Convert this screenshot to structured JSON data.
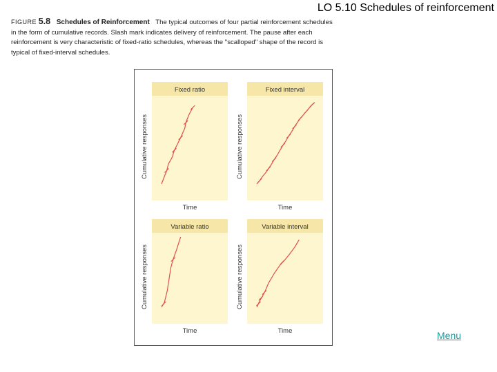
{
  "slide": {
    "title": "LO 5.10  Schedules of reinforcement",
    "menu_label": "Menu"
  },
  "caption": {
    "figure_label": "FIGURE",
    "figure_number": "5.8",
    "figure_title": "Schedules of Reinforcement",
    "text": "The typical outcomes of four partial reinforcement schedules in the form of cumulative records. Slash mark indicates delivery of reinforcement. The pause after each reinforcement is very characteristic of fixed-ratio schedules, whereas the \"scalloped\" shape of the record is typical of fixed-interval schedules."
  },
  "colors": {
    "panel_fill": "#fdf6cf",
    "panel_header": "#f6e7a8",
    "curve": "#e0504a",
    "menu_link": "#1a9a9a"
  },
  "chart_data": [
    {
      "type": "line",
      "title": "Fixed ratio",
      "xlabel": "Time",
      "ylabel": "Cumulative responses",
      "grid": false,
      "series": [
        {
          "x": [
            0,
            0.05,
            0.09,
            0.12,
            0.17,
            0.19,
            0.22,
            0.28,
            0.3,
            0.33,
            0.38,
            0.4,
            0.42,
            0.47,
            0.5,
            0.54
          ],
          "y": [
            0.0,
            0.09,
            0.16,
            0.24,
            0.3,
            0.33,
            0.4,
            0.48,
            0.51,
            0.55,
            0.63,
            0.66,
            0.73,
            0.82,
            0.86,
            0.91
          ]
        }
      ],
      "reinforcements": [
        {
          "x": 0.09,
          "y": 0.16
        },
        {
          "x": 0.22,
          "y": 0.4
        },
        {
          "x": 0.33,
          "y": 0.55
        },
        {
          "x": 0.42,
          "y": 0.73
        },
        {
          "x": 0.54,
          "y": 0.91
        }
      ]
    },
    {
      "type": "line",
      "title": "Fixed interval",
      "xlabel": "Time",
      "ylabel": "Cumulative responses",
      "grid": false,
      "series": [
        {
          "x": [
            0.0,
            0.05,
            0.1,
            0.15,
            0.2,
            0.25,
            0.3,
            0.35,
            0.4,
            0.45,
            0.5,
            0.55,
            0.6,
            0.65,
            0.7,
            0.75,
            0.8,
            0.85,
            0.9,
            0.95,
            1.0
          ],
          "y": [
            0.0,
            0.04,
            0.09,
            0.13,
            0.18,
            0.23,
            0.29,
            0.34,
            0.4,
            0.46,
            0.51,
            0.57,
            0.62,
            0.68,
            0.73,
            0.78,
            0.82,
            0.86,
            0.9,
            0.94,
            0.97
          ]
        }
      ],
      "reinforcements": [
        {
          "x": 0.05,
          "y": 0.04
        },
        {
          "x": 0.2,
          "y": 0.18
        },
        {
          "x": 0.3,
          "y": 0.29
        },
        {
          "x": 0.45,
          "y": 0.46
        },
        {
          "x": 0.55,
          "y": 0.57
        },
        {
          "x": 0.65,
          "y": 0.68
        },
        {
          "x": 0.75,
          "y": 0.78
        },
        {
          "x": 0.85,
          "y": 0.86
        },
        {
          "x": 0.95,
          "y": 0.94
        }
      ]
    },
    {
      "type": "line",
      "title": "Variable ratio",
      "xlabel": "Time",
      "ylabel": "Cumulative responses",
      "grid": false,
      "series": [
        {
          "x": [
            0.0,
            0.05,
            0.1,
            0.13,
            0.16,
            0.2,
            0.23,
            0.26,
            0.29,
            0.33
          ],
          "y": [
            0.0,
            0.07,
            0.24,
            0.4,
            0.56,
            0.68,
            0.75,
            0.82,
            0.9,
            1.0
          ]
        }
      ],
      "reinforcements": [
        {
          "x": 0.04,
          "y": 0.05
        },
        {
          "x": 0.2,
          "y": 0.68
        }
      ]
    },
    {
      "type": "line",
      "title": "Variable interval",
      "xlabel": "Time",
      "ylabel": "Cumulative responses",
      "grid": false,
      "series": [
        {
          "x": [
            0.0,
            0.05,
            0.1,
            0.15,
            0.2,
            0.3,
            0.4,
            0.48,
            0.56,
            0.65,
            0.73
          ],
          "y": [
            0.0,
            0.09,
            0.16,
            0.24,
            0.34,
            0.48,
            0.6,
            0.67,
            0.75,
            0.85,
            0.96
          ]
        }
      ],
      "reinforcements": [
        {
          "x": 0.03,
          "y": 0.05
        },
        {
          "x": 0.07,
          "y": 0.13
        },
        {
          "x": 0.13,
          "y": 0.21
        },
        {
          "x": 0.44,
          "y": 0.64
        }
      ]
    }
  ]
}
